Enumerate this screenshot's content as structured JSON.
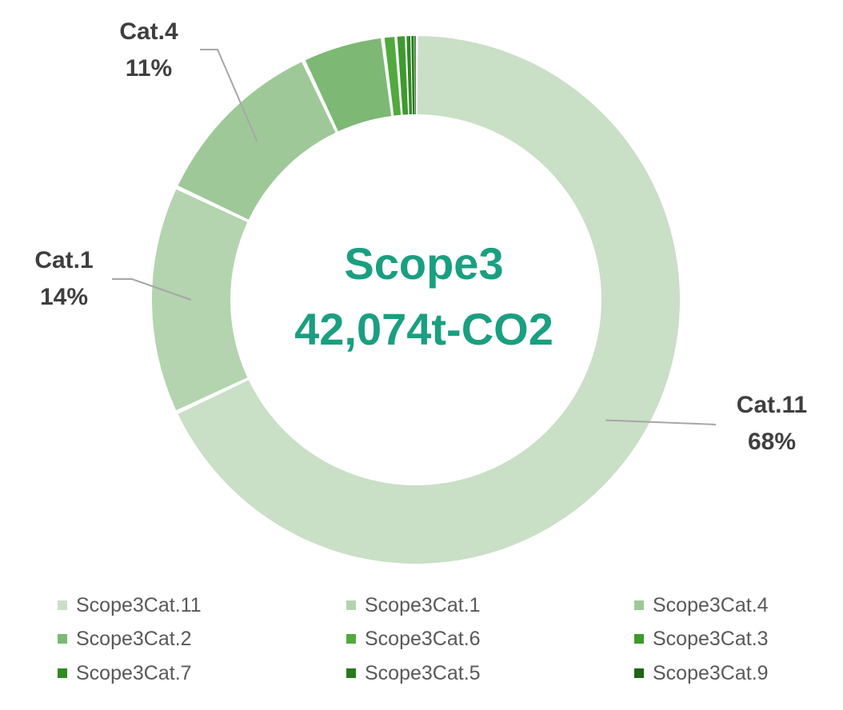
{
  "chart_data": {
    "type": "pie",
    "subtype": "donut",
    "center_text": [
      "Scope3",
      "42,074t-CO2"
    ],
    "center_text_color": "#1a9f80",
    "label_color": "#3f3f3f",
    "leader_line_color": "#a6a6a6",
    "legend_position": "bottom",
    "categories": [
      "Scope3Cat.11",
      "Scope3Cat.1",
      "Scope3Cat.4",
      "Scope3Cat.2",
      "Scope3Cat.6",
      "Scope3Cat.3",
      "Scope3Cat.7",
      "Scope3Cat.5",
      "Scope3Cat.9"
    ],
    "values": [
      68,
      14,
      11,
      5,
      0.8,
      0.6,
      0.3,
      0.2,
      0.1
    ],
    "colors": [
      "#c9dfc6",
      "#b3d4ae",
      "#9ec898",
      "#7db875",
      "#52a93e",
      "#3e9a2e",
      "#2f8a22",
      "#287a1c",
      "#1f6415"
    ],
    "data_labels": [
      {
        "category": "Cat.11",
        "percent": "68%"
      },
      {
        "category": "Cat.1",
        "percent": "14%"
      },
      {
        "category": "Cat.4",
        "percent": "11%"
      }
    ]
  }
}
